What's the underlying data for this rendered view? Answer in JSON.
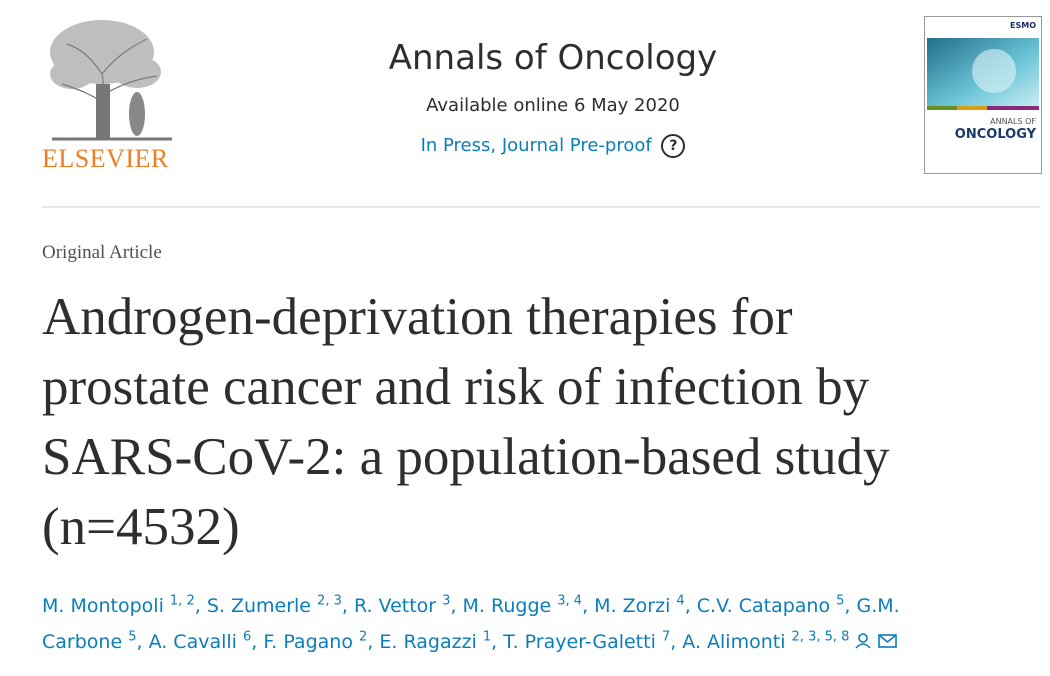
{
  "header": {
    "publisher": "ELSEVIER",
    "journal": "Annals of Oncology",
    "available": "Available online 6 May 2020",
    "status": "In Press, Journal Pre-proof",
    "help_icon": "?",
    "cover": {
      "badge": "ESMO",
      "line1": "ANNALS OF",
      "line2": "ONCOLOGY"
    }
  },
  "article": {
    "type": "Original Article",
    "title_lines": [
      "Androgen-deprivation therapies for",
      "prostate cancer and risk of infection by",
      "SARS-CoV-2: a population-based study",
      "(n=4532)"
    ],
    "authors": [
      {
        "name": "M. Montopoli",
        "affiliations": "1, 2",
        "sep": ", "
      },
      {
        "name": "S. Zumerle",
        "affiliations": "2, 3",
        "sep": ", "
      },
      {
        "name": "R. Vettor",
        "affiliations": "3",
        "sep": ", "
      },
      {
        "name": "M. Rugge",
        "affiliations": "3, 4",
        "sep": ", "
      },
      {
        "name": "M. Zorzi",
        "affiliations": "4",
        "sep": ", "
      },
      {
        "name": "C.V. Catapano",
        "affiliations": "5",
        "sep": ", "
      },
      {
        "name": "G.M. Carbone",
        "affiliations": "5",
        "sep": ", "
      },
      {
        "name": "A. Cavalli",
        "affiliations": "6",
        "sep": ", "
      },
      {
        "name": "F. Pagano",
        "affiliations": "2",
        "sep": ", "
      },
      {
        "name": "E. Ragazzi",
        "affiliations": "1",
        "sep": ", "
      },
      {
        "name": "T. Prayer-Galetti",
        "affiliations": "7",
        "sep": ", "
      },
      {
        "name": "A. Alimonti",
        "affiliations": "2, 3, 5, 8"
      }
    ]
  }
}
